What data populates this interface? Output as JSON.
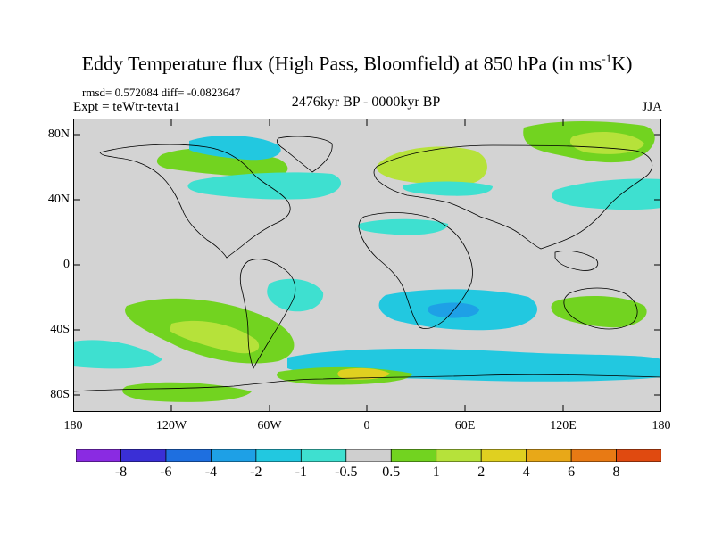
{
  "title": "Eddy Temperature flux (High Pass, Bloomfield) at 850 hPa (in ms",
  "title_sup": "-1",
  "title_tail": "K)",
  "stats": "rmsd= 0.572084 diff= -0.0823647",
  "experiment": "Expt = teWtr-tevta1",
  "period": "2476kyr BP - 0000kyr BP",
  "season": "JJA",
  "y_ticks": [
    "80N",
    "40N",
    "0",
    "40S",
    "80S"
  ],
  "x_ticks": [
    "180",
    "120W",
    "60W",
    "0",
    "60E",
    "120E",
    "180"
  ],
  "colorbar": {
    "labels": [
      "-8",
      "-6",
      "-4",
      "-2",
      "-1",
      "-0.5",
      "0.5",
      "1",
      "2",
      "4",
      "6",
      "8"
    ],
    "colors": [
      "#8a2be2",
      "#3a2fd6",
      "#1e6fe0",
      "#1ea0e6",
      "#22c8e0",
      "#3ee0d0",
      "#cfcfcf",
      "#72d320",
      "#b6e23a",
      "#e0d020",
      "#e8a818",
      "#e87a14",
      "#e04a10"
    ]
  },
  "map": {
    "background": "#d3d3d3",
    "lat_range": [
      -90,
      90
    ],
    "lon_range": [
      -180,
      180
    ]
  }
}
